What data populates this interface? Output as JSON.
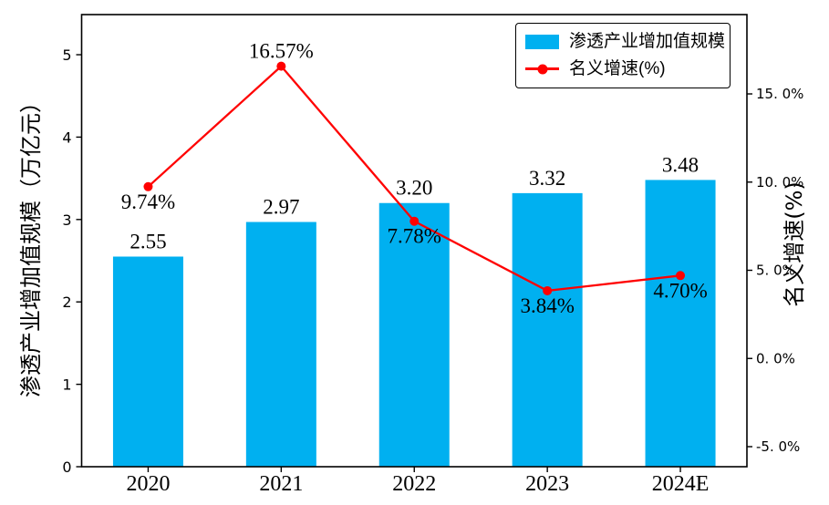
{
  "chart_data": {
    "type": "combo",
    "title": "",
    "categories": [
      "2020",
      "2021",
      "2022",
      "2023",
      "2024E"
    ],
    "series": [
      {
        "name": "渗透产业增加值规模",
        "type": "bar",
        "axis": "left",
        "values": [
          2.55,
          2.97,
          3.2,
          3.32,
          3.48
        ],
        "labels": [
          "2.55",
          "2.97",
          "3.20",
          "3.32",
          "3.48"
        ],
        "color": "#00B0F0"
      },
      {
        "name": "名义增速(%)",
        "type": "line",
        "axis": "right",
        "values": [
          9.74,
          16.57,
          7.78,
          3.84,
          4.7
        ],
        "labels": [
          "9.74%",
          "16.57%",
          "7.78%",
          "3.84%",
          "4.70%"
        ],
        "label_side": [
          "below",
          "above",
          "below",
          "below",
          "below"
        ],
        "color": "#FF0000"
      }
    ],
    "left_axis": {
      "label": "渗透产业增加值规模（万亿元）",
      "ticks": [
        0,
        1,
        2,
        3,
        4,
        5
      ],
      "tick_labels": [
        "0",
        "1",
        "2",
        "3",
        "4",
        "5"
      ],
      "range": [
        0,
        5.487
      ]
    },
    "right_axis": {
      "label": "名义增速(%)",
      "ticks": [
        -5,
        0,
        5,
        10,
        15
      ],
      "tick_labels": [
        "-5. 0%",
        "0. 0%",
        "5. 0%",
        "10. 0%",
        "15. 0%"
      ],
      "range": [
        -6.137,
        19.497
      ]
    },
    "legend": {
      "position": "upper right",
      "entries": [
        "渗透产业增加值规模",
        "名义增速(%)"
      ]
    },
    "grid": false,
    "colors": {
      "bar": "#00B0F0",
      "line": "#FF0000",
      "text": "#000000",
      "spine": "#000000",
      "background": "#ffffff"
    }
  }
}
